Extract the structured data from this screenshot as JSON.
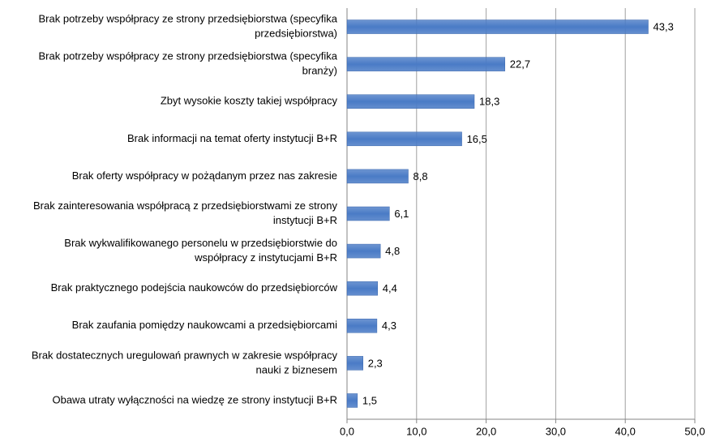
{
  "chart_data": {
    "type": "bar",
    "orientation": "horizontal",
    "categories": [
      [
        "Brak potrzeby współpracy ze strony przedsiębiorstwa (specyfika",
        "przedsiębiorstwa)"
      ],
      [
        "Brak potrzeby współpracy ze strony przedsiębiorstwa (specyfika",
        "branży)"
      ],
      [
        "Zbyt wysokie koszty takiej współpracy"
      ],
      [
        "Brak informacji na temat oferty instytucji B+R"
      ],
      [
        "Brak oferty współpracy w pożądanym przez nas zakresie"
      ],
      [
        "Brak zainteresowania współpracą z przedsiębiorstwami ze strony",
        "instytucji B+R"
      ],
      [
        "Brak wykwalifikowanego personelu w przedsiębiorstwie do",
        "współpracy z instytucjami B+R"
      ],
      [
        "Brak praktycznego podejścia naukowców do przedsiębiorców"
      ],
      [
        "Brak zaufania pomiędzy naukowcami a przedsiębiorcami"
      ],
      [
        "Brak dostatecznych uregulowań prawnych w zakresie współpracy",
        "nauki z biznesem"
      ],
      [
        "Obawa utraty wyłączności na wiedzę ze strony instytucji B+R"
      ]
    ],
    "values": [
      43.3,
      22.7,
      18.3,
      16.5,
      8.8,
      6.1,
      4.8,
      4.4,
      4.3,
      2.3,
      1.5
    ],
    "value_labels": [
      "43,3",
      "22,7",
      "18,3",
      "16,5",
      "8,8",
      "6,1",
      "4,8",
      "4,4",
      "4,3",
      "2,3",
      "1,5"
    ],
    "color": "#4a7bc6",
    "xlim": [
      0,
      50
    ],
    "xticks": [
      {
        "value": 0,
        "label": "0,0"
      },
      {
        "value": 10,
        "label": "10,0"
      },
      {
        "value": 20,
        "label": "20,0"
      },
      {
        "value": 30,
        "label": "30,0"
      },
      {
        "value": 40,
        "label": "40,0"
      },
      {
        "value": 50,
        "label": "50,0"
      }
    ],
    "grid": true
  }
}
